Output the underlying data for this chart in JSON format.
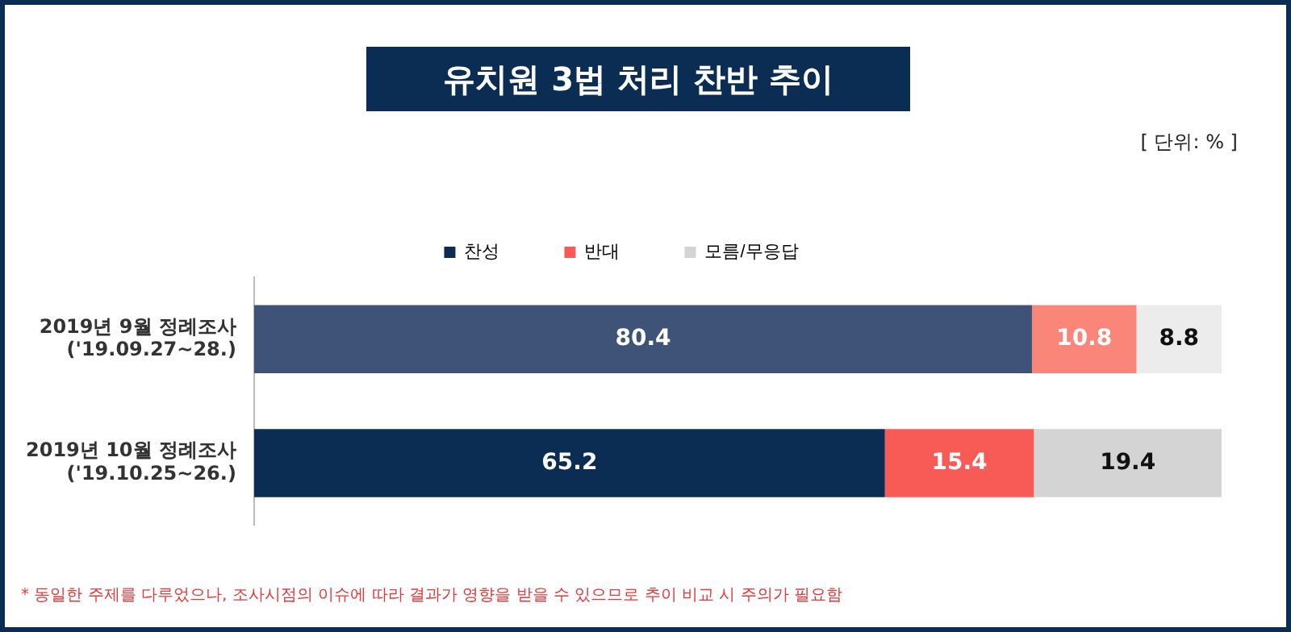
{
  "chart_data": {
    "type": "bar",
    "orientation": "horizontal",
    "stacked": true,
    "title": "유치원 3법 처리 찬반 추이",
    "categories": [
      "2019년 9월 정례조사\n('19.09.27~28.)",
      "2019년 10월 정례조사\n('19.10.25~26.)"
    ],
    "series": [
      {
        "name": "찬성",
        "color": "#0b2d53",
        "colors": [
          "#3e5377",
          "#0b2d53"
        ],
        "values": [
          80.4,
          65.2
        ]
      },
      {
        "name": "반대",
        "color": "#f85a55",
        "colors": [
          "#fa8579",
          "#f85a55"
        ],
        "values": [
          10.8,
          15.4
        ]
      },
      {
        "name": "모름/무응답",
        "color": "#d4d4d4",
        "colors": [
          "#ececec",
          "#d4d4d4"
        ],
        "values": [
          8.8,
          19.4
        ]
      }
    ],
    "xlim": [
      0,
      100
    ],
    "tick_labels": "y",
    "legend": "top",
    "data_labels": true,
    "annotations": [
      "[ 단위: % ]",
      "* 동일한 주제를 다루었으나, 조사시점의 이슈에 따라 결과가 영향을 받을 수 있으므로 추이 비교 시 주의가 필요함"
    ]
  }
}
